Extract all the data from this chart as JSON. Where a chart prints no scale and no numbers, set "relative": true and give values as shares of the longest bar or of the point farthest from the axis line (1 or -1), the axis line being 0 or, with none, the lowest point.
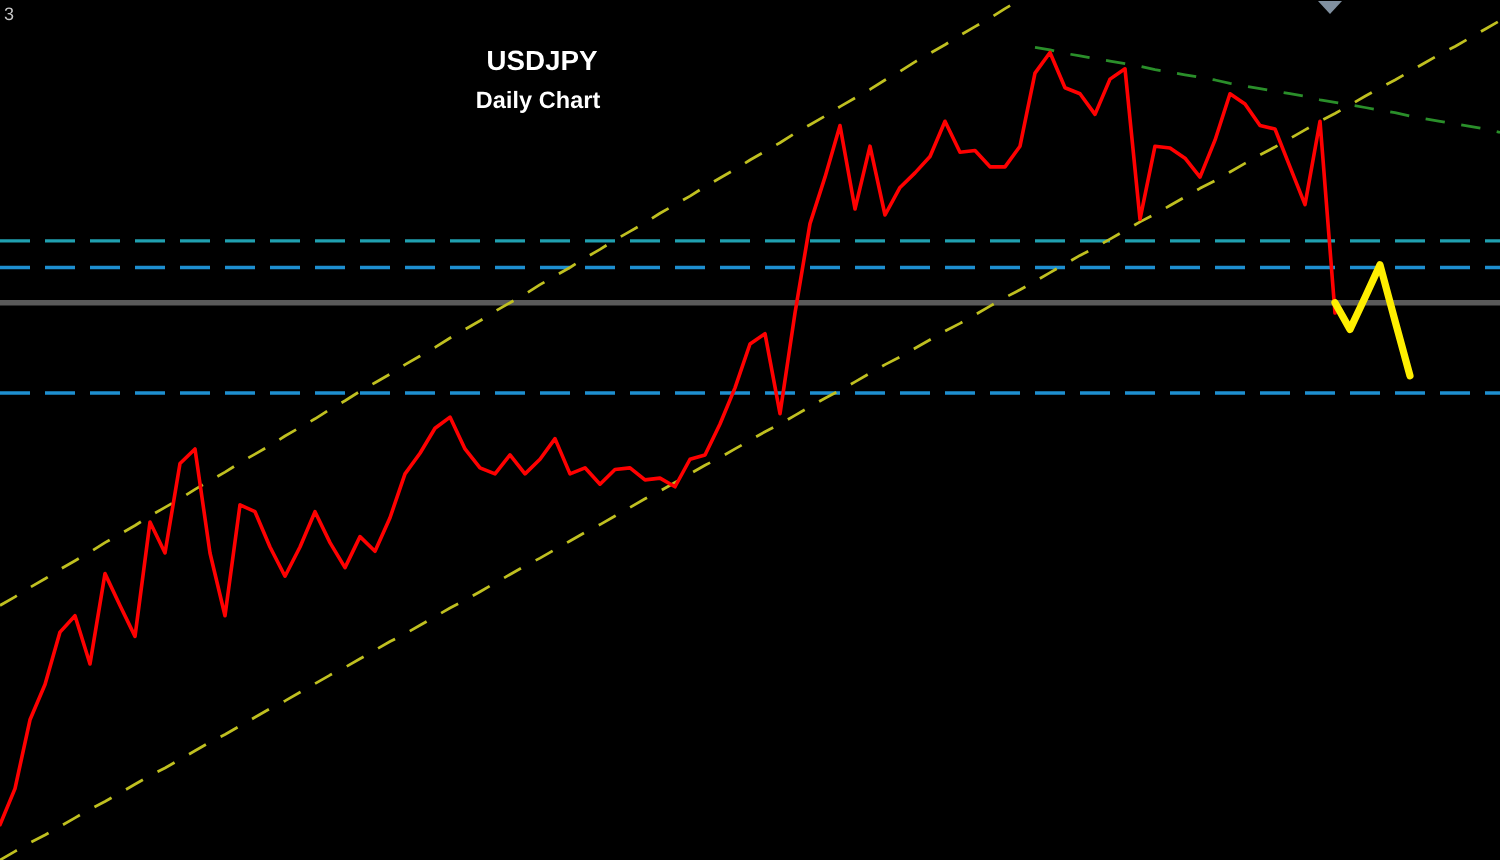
{
  "chart_data": {
    "type": "line",
    "title": "USDJPY",
    "subtitle": "Daily Chart",
    "relative": true,
    "annotations": [
      "3"
    ],
    "categories": [
      null,
      null,
      null,
      null,
      null,
      null,
      null,
      null,
      null,
      null,
      null,
      null,
      null,
      null,
      null,
      null,
      null,
      null,
      null,
      null,
      null,
      null,
      null,
      null,
      null,
      null,
      null,
      null,
      null,
      null,
      null,
      null,
      null,
      null,
      null,
      null,
      null,
      null,
      null,
      null,
      null,
      null,
      null,
      null,
      null,
      null,
      null,
      null,
      null,
      null,
      null,
      null,
      null,
      null,
      null,
      null,
      null,
      null,
      null,
      null,
      null,
      null,
      null,
      null,
      null,
      null,
      null,
      null,
      null,
      null,
      null,
      null,
      null,
      null,
      null,
      null,
      null,
      null,
      null,
      null,
      null,
      null,
      null,
      null,
      null,
      null,
      null,
      null,
      null,
      null,
      null,
      null,
      null,
      null,
      null,
      null,
      null,
      null,
      null,
      null,
      null
    ],
    "ref_lines": [
      {
        "axis": "y",
        "value": 0.72,
        "color": "#20a0b0",
        "line_style": "dashed"
      },
      {
        "axis": "y",
        "value": 0.689,
        "color": "#1e8fd0",
        "line_style": "dashed"
      },
      {
        "axis": "y",
        "value": 0.648,
        "color": "#5a5a5a",
        "line_style": "solid"
      },
      {
        "axis": "y",
        "value": 0.543,
        "color": "#1e8fd0",
        "line_style": "dashed"
      }
    ],
    "series": [
      {
        "color": "#c0c020",
        "line_style": "dashed",
        "values": [
          0.296,
          0.306,
          0.317,
          0.327,
          0.338,
          0.348,
          0.358,
          0.369,
          0.379,
          0.389,
          0.4,
          0.41,
          0.42,
          0.431,
          0.441,
          0.451,
          0.462,
          0.472,
          0.482,
          0.493,
          0.503,
          0.513,
          0.524,
          0.534,
          0.545,
          0.555,
          0.565,
          0.576,
          0.586,
          0.596,
          0.607,
          0.617,
          0.627,
          0.638,
          0.648,
          0.658,
          0.669,
          0.679,
          0.689,
          0.7,
          0.71,
          0.721,
          0.731,
          0.741,
          0.752,
          0.762,
          0.772,
          0.783,
          0.793,
          0.803,
          0.814,
          0.824,
          0.834,
          0.845,
          0.855,
          0.865,
          0.876,
          0.886,
          0.896,
          0.907,
          0.917,
          0.928,
          0.938,
          0.948,
          0.959,
          0.969,
          0.979,
          0.99,
          1.0,
          null,
          null,
          null,
          null,
          null,
          null,
          null,
          null,
          null,
          null,
          null,
          null,
          null,
          null,
          null,
          null,
          null,
          null,
          null,
          null,
          null,
          null,
          null,
          null,
          null,
          null,
          null,
          null,
          null,
          null,
          null,
          null
        ]
      },
      {
        "color": "#c0c020",
        "line_style": "dashed",
        "values": [
          0.0,
          0.01,
          0.02,
          0.029,
          0.039,
          0.049,
          0.059,
          0.068,
          0.078,
          0.088,
          0.098,
          0.107,
          0.117,
          0.127,
          0.137,
          0.146,
          0.156,
          0.166,
          0.176,
          0.185,
          0.195,
          0.205,
          0.215,
          0.224,
          0.234,
          0.244,
          0.254,
          0.263,
          0.273,
          0.283,
          0.293,
          0.302,
          0.312,
          0.322,
          0.332,
          0.342,
          0.351,
          0.361,
          0.371,
          0.381,
          0.39,
          0.4,
          0.41,
          0.42,
          0.429,
          0.439,
          0.449,
          0.459,
          0.468,
          0.478,
          0.488,
          0.498,
          0.507,
          0.517,
          0.527,
          0.537,
          0.546,
          0.556,
          0.566,
          0.576,
          0.585,
          0.595,
          0.605,
          0.615,
          0.624,
          0.634,
          0.644,
          0.654,
          0.663,
          0.673,
          0.683,
          0.693,
          0.703,
          0.712,
          0.722,
          0.732,
          0.742,
          0.751,
          0.761,
          0.771,
          0.781,
          0.79,
          0.8,
          0.81,
          0.82,
          0.829,
          0.839,
          0.849,
          0.859,
          0.868,
          0.878,
          0.888,
          0.898,
          0.907,
          0.917,
          0.927,
          0.937,
          0.946,
          0.956,
          0.966,
          0.976
        ]
      },
      {
        "color": "#2a8f2a",
        "line_style": "dashed",
        "values": [
          null,
          null,
          null,
          null,
          null,
          null,
          null,
          null,
          null,
          null,
          null,
          null,
          null,
          null,
          null,
          null,
          null,
          null,
          null,
          null,
          null,
          null,
          null,
          null,
          null,
          null,
          null,
          null,
          null,
          null,
          null,
          null,
          null,
          null,
          null,
          null,
          null,
          null,
          null,
          null,
          null,
          null,
          null,
          null,
          null,
          null,
          null,
          null,
          null,
          null,
          null,
          null,
          null,
          null,
          null,
          null,
          null,
          null,
          null,
          null,
          null,
          null,
          null,
          null,
          null,
          null,
          null,
          null,
          null,
          0.945,
          0.942,
          0.938,
          0.935,
          0.932,
          0.929,
          0.926,
          0.923,
          0.919,
          0.916,
          0.913,
          0.91,
          0.907,
          0.903,
          0.9,
          0.897,
          0.894,
          0.891,
          0.888,
          0.884,
          0.881,
          0.878,
          0.875,
          0.872,
          0.869,
          0.865,
          0.862,
          0.859,
          0.856,
          0.853,
          0.85,
          0.846
        ]
      },
      {
        "color": "#ff0000",
        "line_style": "solid",
        "values": [
          0.041,
          0.083,
          0.163,
          0.204,
          0.265,
          0.284,
          0.228,
          0.333,
          0.296,
          0.26,
          0.393,
          0.357,
          0.461,
          0.478,
          0.357,
          0.284,
          0.413,
          0.405,
          0.364,
          0.33,
          0.364,
          0.405,
          0.369,
          0.34,
          0.376,
          0.359,
          0.398,
          0.449,
          0.473,
          0.502,
          0.515,
          0.478,
          0.456,
          0.449,
          0.471,
          0.449,
          0.466,
          0.49,
          0.449,
          0.456,
          0.437,
          0.454,
          0.456,
          0.442,
          0.444,
          0.434,
          0.466,
          0.471,
          0.507,
          0.549,
          0.6,
          0.612,
          0.519,
          0.636,
          0.74,
          0.794,
          0.854,
          0.757,
          0.83,
          0.75,
          0.782,
          0.799,
          0.818,
          0.859,
          0.823,
          0.825,
          0.806,
          0.806,
          0.83,
          0.915,
          0.939,
          0.898,
          0.891,
          0.867,
          0.908,
          0.92,
          0.745,
          0.83,
          0.828,
          0.816,
          0.794,
          0.837,
          0.891,
          0.879,
          0.854,
          0.85,
          0.806,
          0.762,
          0.859,
          0.636,
          null,
          null,
          null,
          null,
          null,
          null,
          null,
          null,
          null,
          null,
          null
        ]
      },
      {
        "color": "#ffee00",
        "line_style": "solid",
        "values": [
          null,
          null,
          null,
          null,
          null,
          null,
          null,
          null,
          null,
          null,
          null,
          null,
          null,
          null,
          null,
          null,
          null,
          null,
          null,
          null,
          null,
          null,
          null,
          null,
          null,
          null,
          null,
          null,
          null,
          null,
          null,
          null,
          null,
          null,
          null,
          null,
          null,
          null,
          null,
          null,
          null,
          null,
          null,
          null,
          null,
          null,
          null,
          null,
          null,
          null,
          null,
          null,
          null,
          null,
          null,
          null,
          null,
          null,
          null,
          null,
          null,
          null,
          null,
          null,
          null,
          null,
          null,
          null,
          null,
          null,
          null,
          null,
          null,
          null,
          null,
          null,
          null,
          null,
          null,
          null,
          null,
          null,
          null,
          null,
          null,
          null,
          null,
          null,
          null,
          0.648,
          0.617,
          0.654,
          0.692,
          0.627,
          0.563,
          null,
          null,
          null,
          null,
          null,
          null
        ]
      }
    ]
  }
}
